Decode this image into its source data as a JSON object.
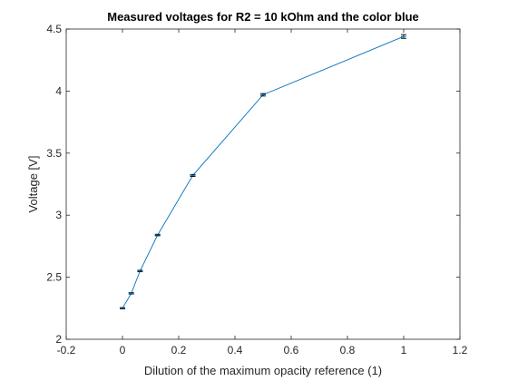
{
  "chart_data": {
    "type": "line",
    "title": "Measured voltages for R2 = 10 kOhm and the color blue",
    "xlabel": "Dilution of the maximum opacity reference (1)",
    "ylabel": "Voltage [V]",
    "xlim": [
      -0.2,
      1.2
    ],
    "ylim": [
      2,
      4.5
    ],
    "x_ticks": [
      -0.2,
      0,
      0.2,
      0.4,
      0.6,
      0.8,
      1,
      1.2
    ],
    "x_tick_labels": [
      "-0.2",
      "0",
      "0.2",
      "0.4",
      "0.6",
      "0.8",
      "1",
      "1.2"
    ],
    "y_ticks": [
      2,
      2.5,
      3,
      3.5,
      4,
      4.5
    ],
    "y_tick_labels": [
      "2",
      "2.5",
      "3",
      "3.5",
      "4",
      "4.5"
    ],
    "grid": false,
    "error_bars": true,
    "series": [
      {
        "color": "#0072bd",
        "x": [
          0,
          0.03125,
          0.0625,
          0.125,
          0.25,
          0.5,
          1
        ],
        "y": [
          2.25,
          2.37,
          2.55,
          2.84,
          3.32,
          3.97,
          4.44
        ],
        "error": [
          0.005,
          0.005,
          0.006,
          0.006,
          0.008,
          0.01,
          0.015
        ]
      }
    ]
  }
}
